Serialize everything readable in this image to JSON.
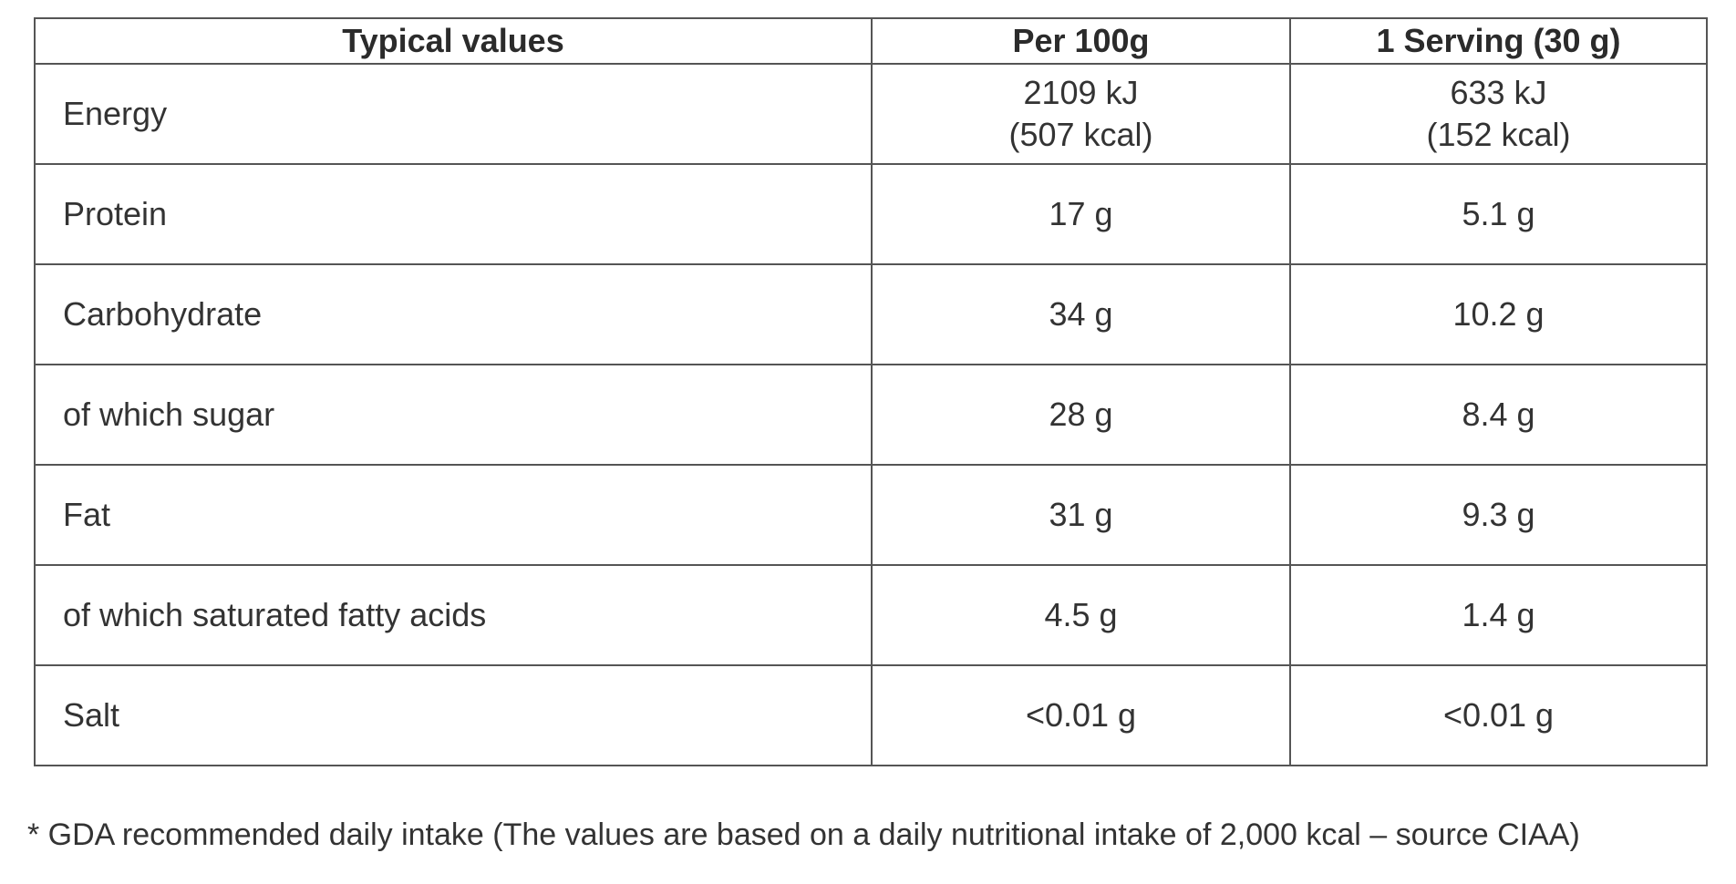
{
  "table": {
    "headers": {
      "label": "Typical values",
      "per100": "Per 100g",
      "serving": "1 Serving (30 g)"
    },
    "rows": [
      {
        "label": "Energy",
        "per100": [
          "2109 kJ",
          "(507 kcal)"
        ],
        "serving": [
          "633 kJ",
          "(152 kcal)"
        ]
      },
      {
        "label": "Protein",
        "per100": [
          "17 g"
        ],
        "serving": [
          "5.1 g"
        ]
      },
      {
        "label": "Carbohydrate",
        "per100": [
          "34 g"
        ],
        "serving": [
          "10.2 g"
        ]
      },
      {
        "label": "of which sugar",
        "per100": [
          "28 g"
        ],
        "serving": [
          "8.4 g"
        ]
      },
      {
        "label": "Fat",
        "per100": [
          "31 g"
        ],
        "serving": [
          "9.3 g"
        ]
      },
      {
        "label": "of which saturated fatty acids",
        "per100": [
          "4.5 g"
        ],
        "serving": [
          "1.4 g"
        ]
      },
      {
        "label": "Salt",
        "per100": [
          "<0.01 g"
        ],
        "serving": [
          "<0.01 g"
        ]
      }
    ]
  },
  "footnote": "* GDA recommended daily intake (The values are based on a daily nutritional intake of 2,000 kcal – source CIAA)"
}
